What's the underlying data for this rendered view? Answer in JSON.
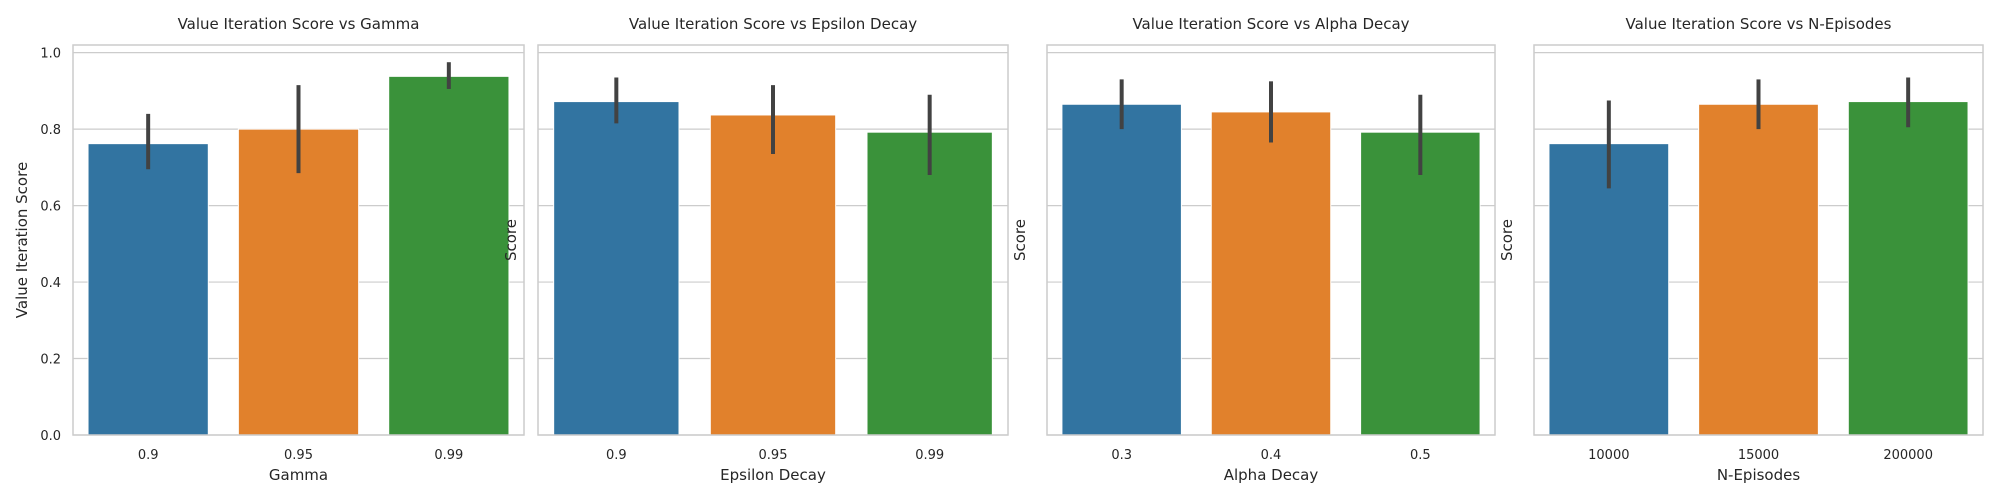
{
  "chart_data": [
    {
      "type": "bar",
      "title": "Value Iteration Score vs Gamma",
      "xlabel": "Gamma",
      "ylabel": "Value Iteration Score",
      "categories": [
        "0.9",
        "0.95",
        "0.99"
      ],
      "values": [
        0.762,
        0.8,
        0.938
      ],
      "error_low": [
        0.695,
        0.685,
        0.905
      ],
      "error_high": [
        0.84,
        0.915,
        0.975
      ],
      "colors": [
        "#3274a1",
        "#e1812c",
        "#3a923a"
      ],
      "ylim": [
        0,
        1.02
      ],
      "yticks": [
        "0.0",
        "0.2",
        "0.4",
        "0.6",
        "0.8",
        "1.0"
      ],
      "grid": true
    },
    {
      "type": "bar",
      "title": "Value Iteration Score vs Epsilon Decay",
      "xlabel": "Epsilon Decay",
      "ylabel": "Score",
      "categories": [
        "0.9",
        "0.95",
        "0.99"
      ],
      "values": [
        0.872,
        0.837,
        0.792
      ],
      "error_low": [
        0.815,
        0.735,
        0.68
      ],
      "error_high": [
        0.935,
        0.915,
        0.89
      ],
      "colors": [
        "#3274a1",
        "#e1812c",
        "#3a923a"
      ],
      "ylim": [
        0,
        1.02
      ],
      "grid": true
    },
    {
      "type": "bar",
      "title": "Value Iteration Score vs Alpha Decay",
      "xlabel": "Alpha Decay",
      "ylabel": "Score",
      "categories": [
        "0.3",
        "0.4",
        "0.5"
      ],
      "values": [
        0.865,
        0.845,
        0.792
      ],
      "error_low": [
        0.8,
        0.765,
        0.68
      ],
      "error_high": [
        0.93,
        0.925,
        0.89
      ],
      "colors": [
        "#3274a1",
        "#e1812c",
        "#3a923a"
      ],
      "ylim": [
        0,
        1.02
      ],
      "grid": true
    },
    {
      "type": "bar",
      "title": "Value Iteration Score vs N-Episodes",
      "xlabel": "N-Episodes",
      "ylabel": "Score",
      "categories": [
        "10000",
        "15000",
        "200000"
      ],
      "values": [
        0.762,
        0.865,
        0.872
      ],
      "error_low": [
        0.645,
        0.8,
        0.805
      ],
      "error_high": [
        0.875,
        0.93,
        0.935
      ],
      "colors": [
        "#3274a1",
        "#e1812c",
        "#3a923a"
      ],
      "ylim": [
        0,
        1.02
      ],
      "grid": true
    }
  ]
}
